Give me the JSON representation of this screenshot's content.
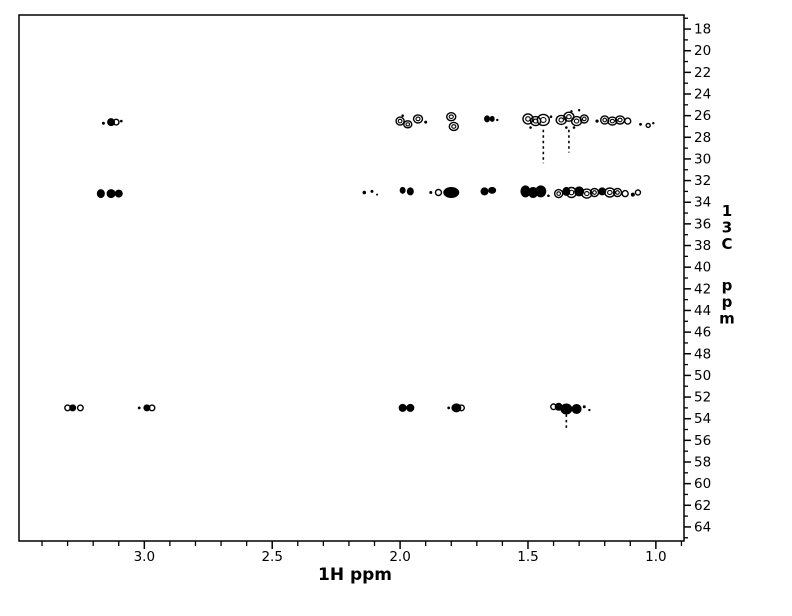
{
  "chart_data": {
    "type": "scatter",
    "subtype": "2d-nmr-contour",
    "title": "",
    "xlabel": "1H ppm",
    "ylabel": "13C ppm",
    "xlim": [
      3.49,
      0.89
    ],
    "ylim": [
      16.7,
      65.3
    ],
    "x_ticks": [
      3.0,
      2.5,
      2.0,
      1.5,
      1.0
    ],
    "x_tick_labels": [
      "3.0",
      "2.5",
      "2.0",
      "1.5",
      "1.0"
    ],
    "x_minor_step": 0.1,
    "y_ticks": [
      18,
      20,
      22,
      24,
      26,
      28,
      30,
      32,
      34,
      36,
      38,
      40,
      42,
      44,
      46,
      48,
      50,
      52,
      54,
      56,
      58,
      60,
      62,
      64
    ],
    "y_minor_step": 1,
    "grid": false,
    "colors": {
      "foreground": "#000000",
      "background": "#ffffff"
    },
    "peaks": [
      {
        "h": 3.16,
        "c": 26.7,
        "rx": 1.5,
        "ry": 1.5,
        "t": "dot"
      },
      {
        "h": 3.13,
        "c": 26.6,
        "rx": 4.0,
        "ry": 4.0,
        "t": "solid"
      },
      {
        "h": 3.11,
        "c": 26.6,
        "rx": 2.8,
        "ry": 2.8,
        "t": "ring"
      },
      {
        "h": 3.09,
        "c": 26.5,
        "rx": 1.3,
        "ry": 1.3,
        "t": "dot"
      },
      {
        "h": 2.0,
        "c": 26.5,
        "rx": 4.0,
        "ry": 4.0,
        "t": "ring"
      },
      {
        "h": 1.99,
        "c": 26.0,
        "rx": 1.3,
        "ry": 1.3,
        "t": "dot"
      },
      {
        "h": 1.97,
        "c": 26.8,
        "rx": 4.0,
        "ry": 3.5,
        "t": "ring"
      },
      {
        "h": 1.93,
        "c": 26.3,
        "rx": 4.5,
        "ry": 4.0,
        "t": "ring"
      },
      {
        "h": 1.9,
        "c": 26.6,
        "rx": 1.5,
        "ry": 1.5,
        "t": "dot"
      },
      {
        "h": 1.8,
        "c": 26.1,
        "rx": 4.5,
        "ry": 4.0,
        "t": "ring"
      },
      {
        "h": 1.79,
        "c": 27.0,
        "rx": 4.5,
        "ry": 4.0,
        "t": "ring"
      },
      {
        "h": 1.66,
        "c": 26.3,
        "rx": 3.0,
        "ry": 3.5,
        "t": "solid"
      },
      {
        "h": 1.64,
        "c": 26.3,
        "rx": 2.5,
        "ry": 3.0,
        "t": "solid"
      },
      {
        "h": 1.62,
        "c": 26.4,
        "rx": 1.2,
        "ry": 1.2,
        "t": "dot"
      },
      {
        "h": 1.5,
        "c": 26.3,
        "rx": 5.0,
        "ry": 5.0,
        "t": "ring"
      },
      {
        "h": 1.47,
        "c": 26.5,
        "rx": 5.0,
        "ry": 4.5,
        "t": "ring"
      },
      {
        "h": 1.44,
        "c": 26.4,
        "rx": 6.0,
        "ry": 5.5,
        "t": "ring"
      },
      {
        "h": 1.49,
        "c": 27.1,
        "rx": 1.3,
        "ry": 1.3,
        "t": "dot"
      },
      {
        "h": 1.41,
        "c": 26.1,
        "rx": 1.3,
        "ry": 1.3,
        "t": "dot"
      },
      {
        "h": 1.37,
        "c": 26.4,
        "rx": 5.0,
        "ry": 4.5,
        "t": "ring"
      },
      {
        "h": 1.34,
        "c": 26.1,
        "rx": 5.0,
        "ry": 4.5,
        "t": "ring"
      },
      {
        "h": 1.31,
        "c": 26.5,
        "rx": 5.0,
        "ry": 4.5,
        "t": "ring"
      },
      {
        "h": 1.28,
        "c": 26.3,
        "rx": 4.0,
        "ry": 4.0,
        "t": "ring"
      },
      {
        "h": 1.35,
        "c": 27.1,
        "rx": 1.3,
        "ry": 1.3,
        "t": "dot"
      },
      {
        "h": 1.32,
        "c": 27.1,
        "rx": 1.3,
        "ry": 1.3,
        "t": "dot"
      },
      {
        "h": 1.33,
        "c": 25.6,
        "rx": 1.2,
        "ry": 1.2,
        "t": "dot"
      },
      {
        "h": 1.3,
        "c": 25.5,
        "rx": 1.2,
        "ry": 1.2,
        "t": "dot"
      },
      {
        "h": 1.23,
        "c": 26.5,
        "rx": 1.6,
        "ry": 1.6,
        "t": "dot"
      },
      {
        "h": 1.2,
        "c": 26.4,
        "rx": 4.0,
        "ry": 4.0,
        "t": "ring"
      },
      {
        "h": 1.17,
        "c": 26.5,
        "rx": 4.5,
        "ry": 4.0,
        "t": "ring"
      },
      {
        "h": 1.14,
        "c": 26.4,
        "rx": 4.5,
        "ry": 4.0,
        "t": "ring"
      },
      {
        "h": 1.11,
        "c": 26.5,
        "rx": 3.0,
        "ry": 3.0,
        "t": "ring"
      },
      {
        "h": 1.06,
        "c": 26.8,
        "rx": 1.4,
        "ry": 1.4,
        "t": "dot"
      },
      {
        "h": 1.03,
        "c": 26.9,
        "rx": 2.0,
        "ry": 2.0,
        "t": "ring"
      },
      {
        "h": 1.01,
        "c": 26.7,
        "rx": 1.2,
        "ry": 1.2,
        "t": "dot"
      },
      {
        "h": 3.17,
        "c": 33.2,
        "rx": 4.0,
        "ry": 4.5,
        "t": "solid"
      },
      {
        "h": 3.13,
        "c": 33.2,
        "rx": 4.5,
        "ry": 4.5,
        "t": "solid"
      },
      {
        "h": 3.1,
        "c": 33.2,
        "rx": 4.0,
        "ry": 4.0,
        "t": "solid"
      },
      {
        "h": 2.14,
        "c": 33.1,
        "rx": 1.8,
        "ry": 1.8,
        "t": "dot"
      },
      {
        "h": 2.11,
        "c": 33.0,
        "rx": 1.5,
        "ry": 1.5,
        "t": "dot"
      },
      {
        "h": 2.09,
        "c": 33.3,
        "rx": 1.0,
        "ry": 1.0,
        "t": "dot"
      },
      {
        "h": 1.99,
        "c": 32.9,
        "rx": 3.0,
        "ry": 3.5,
        "t": "solid"
      },
      {
        "h": 1.96,
        "c": 33.0,
        "rx": 3.5,
        "ry": 4.0,
        "t": "solid"
      },
      {
        "h": 1.88,
        "c": 33.1,
        "rx": 1.5,
        "ry": 1.5,
        "t": "dot"
      },
      {
        "h": 1.85,
        "c": 33.1,
        "rx": 3.0,
        "ry": 3.0,
        "t": "ring"
      },
      {
        "h": 1.8,
        "c": 33.1,
        "rx": 8.0,
        "ry": 5.5,
        "t": "solid"
      },
      {
        "h": 1.67,
        "c": 33.0,
        "rx": 4.0,
        "ry": 4.0,
        "t": "solid"
      },
      {
        "h": 1.64,
        "c": 32.9,
        "rx": 4.0,
        "ry": 3.5,
        "t": "solid"
      },
      {
        "h": 1.51,
        "c": 33.0,
        "rx": 5.0,
        "ry": 6.0,
        "t": "solid"
      },
      {
        "h": 1.48,
        "c": 33.1,
        "rx": 5.0,
        "ry": 5.5,
        "t": "solid"
      },
      {
        "h": 1.45,
        "c": 33.0,
        "rx": 5.5,
        "ry": 6.0,
        "t": "solid"
      },
      {
        "h": 1.42,
        "c": 33.4,
        "rx": 1.3,
        "ry": 1.3,
        "t": "dot"
      },
      {
        "h": 1.38,
        "c": 33.2,
        "rx": 4.0,
        "ry": 4.0,
        "t": "ring"
      },
      {
        "h": 1.35,
        "c": 33.0,
        "rx": 4.0,
        "ry": 4.5,
        "t": "solid"
      },
      {
        "h": 1.33,
        "c": 33.1,
        "rx": 5.0,
        "ry": 5.0,
        "t": "ring"
      },
      {
        "h": 1.3,
        "c": 33.0,
        "rx": 5.0,
        "ry": 5.0,
        "t": "solid"
      },
      {
        "h": 1.27,
        "c": 33.2,
        "rx": 5.0,
        "ry": 4.5,
        "t": "ring"
      },
      {
        "h": 1.24,
        "c": 33.1,
        "rx": 4.0,
        "ry": 4.0,
        "t": "ring"
      },
      {
        "h": 1.21,
        "c": 33.0,
        "rx": 4.0,
        "ry": 4.0,
        "t": "solid"
      },
      {
        "h": 1.18,
        "c": 33.1,
        "rx": 5.0,
        "ry": 4.5,
        "t": "ring"
      },
      {
        "h": 1.15,
        "c": 33.1,
        "rx": 4.0,
        "ry": 4.0,
        "t": "ring"
      },
      {
        "h": 1.12,
        "c": 33.2,
        "rx": 3.0,
        "ry": 3.0,
        "t": "ring"
      },
      {
        "h": 1.09,
        "c": 33.3,
        "rx": 2.0,
        "ry": 2.0,
        "t": "dot"
      },
      {
        "h": 1.07,
        "c": 33.1,
        "rx": 2.5,
        "ry": 2.5,
        "t": "ring"
      },
      {
        "h": 3.3,
        "c": 53.0,
        "rx": 2.8,
        "ry": 2.8,
        "t": "ring"
      },
      {
        "h": 3.28,
        "c": 53.0,
        "rx": 3.5,
        "ry": 3.5,
        "t": "solid"
      },
      {
        "h": 3.25,
        "c": 53.0,
        "rx": 2.8,
        "ry": 2.8,
        "t": "ring"
      },
      {
        "h": 3.02,
        "c": 53.0,
        "rx": 1.4,
        "ry": 1.4,
        "t": "dot"
      },
      {
        "h": 2.99,
        "c": 53.0,
        "rx": 3.5,
        "ry": 3.5,
        "t": "solid"
      },
      {
        "h": 2.97,
        "c": 53.0,
        "rx": 2.8,
        "ry": 2.8,
        "t": "ring"
      },
      {
        "h": 1.99,
        "c": 53.0,
        "rx": 4.0,
        "ry": 4.0,
        "t": "solid"
      },
      {
        "h": 1.96,
        "c": 53.0,
        "rx": 4.0,
        "ry": 4.0,
        "t": "solid"
      },
      {
        "h": 1.81,
        "c": 53.0,
        "rx": 1.4,
        "ry": 1.4,
        "t": "dot"
      },
      {
        "h": 1.78,
        "c": 53.0,
        "rx": 5.0,
        "ry": 4.5,
        "t": "solid"
      },
      {
        "h": 1.76,
        "c": 53.0,
        "rx": 2.8,
        "ry": 2.8,
        "t": "ring"
      },
      {
        "h": 1.4,
        "c": 52.9,
        "rx": 2.8,
        "ry": 2.8,
        "t": "ring"
      },
      {
        "h": 1.38,
        "c": 52.9,
        "rx": 4.0,
        "ry": 4.0,
        "t": "solid"
      },
      {
        "h": 1.35,
        "c": 53.1,
        "rx": 6.0,
        "ry": 5.5,
        "t": "solid"
      },
      {
        "h": 1.31,
        "c": 53.1,
        "rx": 5.0,
        "ry": 5.0,
        "t": "solid"
      },
      {
        "h": 1.28,
        "c": 52.9,
        "rx": 1.5,
        "ry": 1.5,
        "t": "dot"
      },
      {
        "h": 1.26,
        "c": 53.2,
        "rx": 1.2,
        "ry": 1.2,
        "t": "dot"
      }
    ],
    "noise_streaks": [
      {
        "h": 1.44,
        "c_from": 27.3,
        "c_to": 30.4
      },
      {
        "h": 1.34,
        "c_from": 27.3,
        "c_to": 29.4
      },
      {
        "h": 1.35,
        "c_from": 53.6,
        "c_to": 55.0
      }
    ]
  }
}
